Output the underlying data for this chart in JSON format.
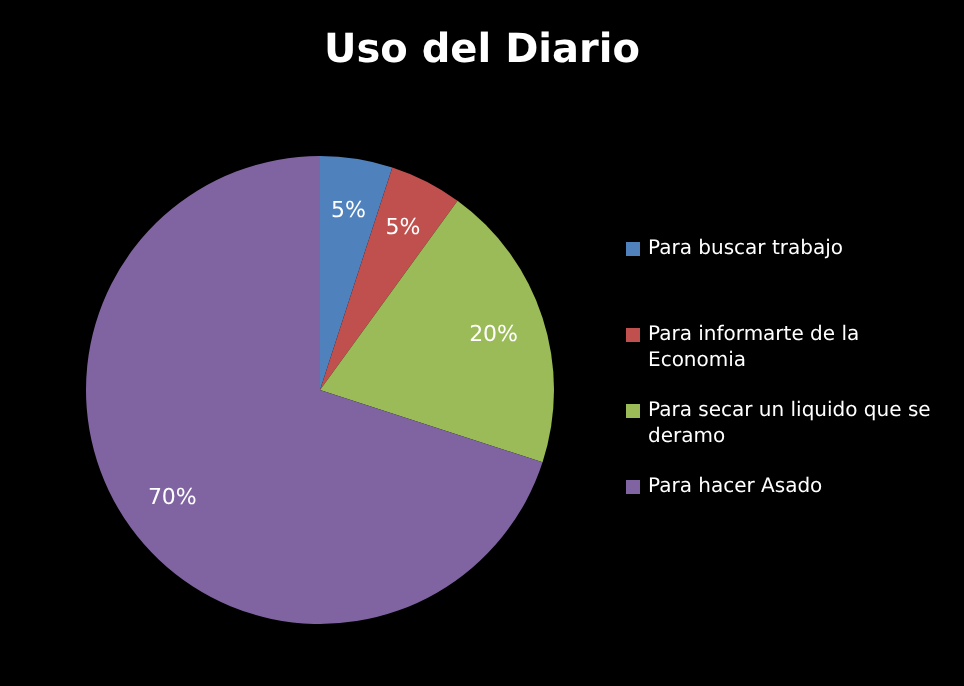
{
  "chart_data": {
    "type": "pie",
    "title": "Uso del Diario",
    "categories": [
      "Para buscar trabajo",
      "Para informarte de la Economia",
      "Para secar un liquido que se deramo",
      "Para hacer Asado"
    ],
    "values": [
      5,
      5,
      20,
      70
    ],
    "colors": [
      "#4f81bd",
      "#c0504d",
      "#9bbb59",
      "#8064a2"
    ],
    "value_labels": [
      "5%",
      "5%",
      "20%",
      "70%"
    ],
    "legend": "right"
  }
}
